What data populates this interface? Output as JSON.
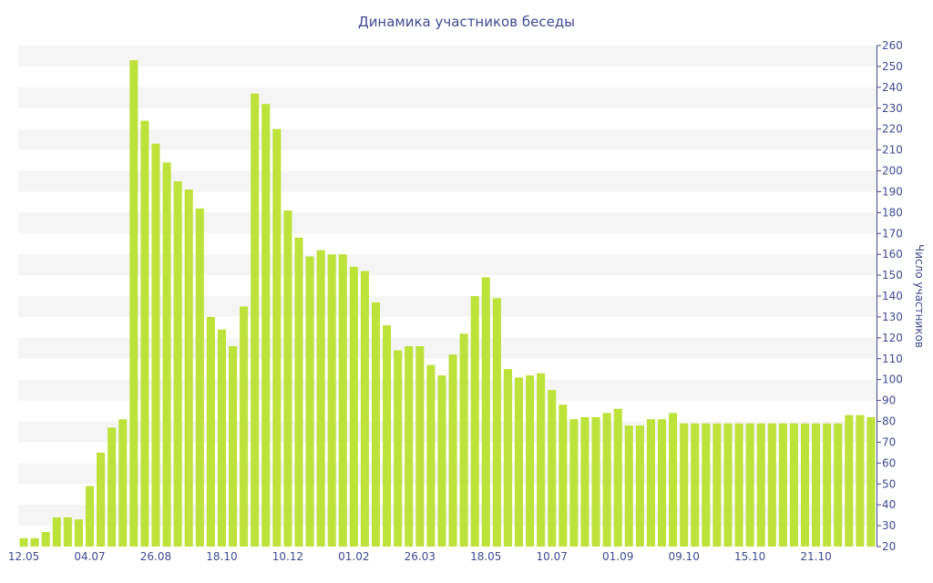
{
  "chart_data": {
    "type": "bar",
    "title": "Динамика участников беседы",
    "xlabel": "",
    "ylabel": "Число участников",
    "ylim": [
      20,
      260
    ],
    "ytick_step": 10,
    "ytick_side": "right",
    "grid": "alternating horizontal bands",
    "bar_color": "#bde23a",
    "text_color": "#3f4a93",
    "x_tick_labels": [
      {
        "index": 0,
        "label": "12.05"
      },
      {
        "index": 6,
        "label": "04.07"
      },
      {
        "index": 12,
        "label": "26.08"
      },
      {
        "index": 18,
        "label": "18.10"
      },
      {
        "index": 24,
        "label": "10.12"
      },
      {
        "index": 30,
        "label": "01.02"
      },
      {
        "index": 36,
        "label": "26.03"
      },
      {
        "index": 42,
        "label": "18.05"
      },
      {
        "index": 48,
        "label": "10.07"
      },
      {
        "index": 54,
        "label": "01.09"
      },
      {
        "index": 60,
        "label": "09.10"
      },
      {
        "index": 66,
        "label": "15.10"
      },
      {
        "index": 72,
        "label": "21.10"
      }
    ],
    "values": [
      24,
      24,
      27,
      34,
      34,
      33,
      49,
      65,
      77,
      81,
      253,
      224,
      213,
      204,
      195,
      191,
      182,
      130,
      124,
      116,
      135,
      237,
      232,
      220,
      181,
      168,
      159,
      162,
      160,
      160,
      154,
      152,
      137,
      126,
      114,
      116,
      116,
      107,
      102,
      112,
      122,
      140,
      149,
      139,
      105,
      101,
      102,
      103,
      95,
      88,
      81,
      82,
      82,
      84,
      86,
      78,
      78,
      81,
      81,
      84,
      79,
      79,
      79,
      79,
      79,
      79,
      79,
      79,
      79,
      79,
      79,
      79,
      79,
      79,
      79,
      83,
      83,
      82
    ]
  }
}
